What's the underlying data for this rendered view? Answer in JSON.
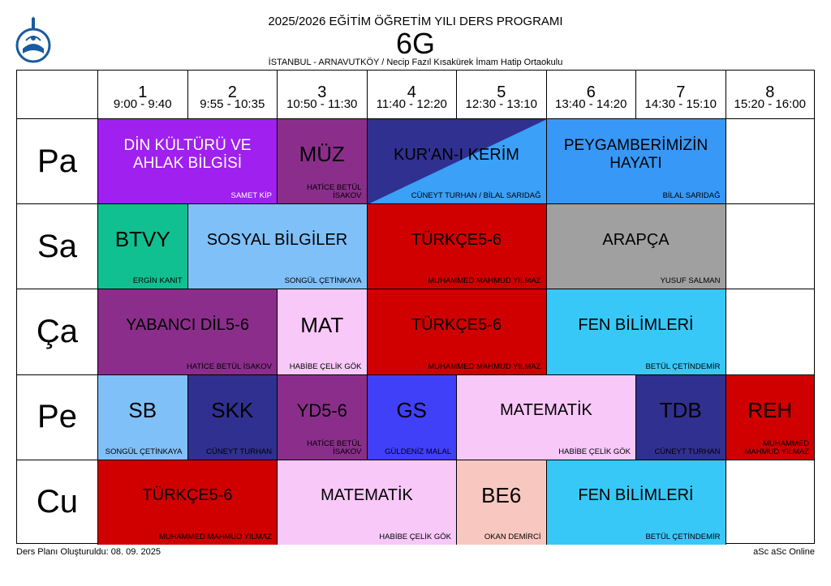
{
  "header": {
    "title": "2025/2026 EĞİTİM ÖĞRETİM YILI DERS PROGRAMI",
    "class_name": "6G",
    "school": "İSTANBUL - ARNAVUTKÖY / Necip Fazıl Kısakürek İmam Hatip Ortaokulu"
  },
  "periods": [
    {
      "num": "1",
      "time": "9:00 - 9:40"
    },
    {
      "num": "2",
      "time": "9:55 - 10:35"
    },
    {
      "num": "3",
      "time": "10:50 - 11:30"
    },
    {
      "num": "4",
      "time": "11:40 - 12:20"
    },
    {
      "num": "5",
      "time": "12:30 - 13:10"
    },
    {
      "num": "6",
      "time": "13:40 - 14:20"
    },
    {
      "num": "7",
      "time": "14:30 - 15:10"
    },
    {
      "num": "8",
      "time": "15:20 - 16:00"
    }
  ],
  "days": [
    "Pa",
    "Sa",
    "Ça",
    "Pe",
    "Cu"
  ],
  "lessons": [
    {
      "day": 0,
      "start": 0,
      "span": 2,
      "name": "DİN KÜLTÜRÜ VE AHLAK BİLGİSİ",
      "teacher": "SAMET KİP",
      "color": "#a020f0",
      "text_color": "#fff"
    },
    {
      "day": 0,
      "start": 2,
      "span": 1,
      "name": "MÜZ",
      "teacher": "HATİCE BETÜL İSAKOV",
      "color": "#8b2e8b",
      "text_color": "#000"
    },
    {
      "day": 0,
      "start": 3,
      "span": 2,
      "name": "KUR'AN-I KERİM",
      "teacher": "CÜNEYT TURHAN / BİLAL SARIDAĞ",
      "color": "#3aa0f8",
      "color2": "#303090",
      "text_color": "#000"
    },
    {
      "day": 0,
      "start": 5,
      "span": 2,
      "name": "PEYGAMBERİMİZİN HAYATI",
      "teacher": "BİLAL SARIDAĞ",
      "color": "#3898f8",
      "text_color": "#000"
    },
    {
      "day": 1,
      "start": 0,
      "span": 1,
      "name": "BTVY",
      "teacher": "ERGİN KANIT",
      "color": "#10c090",
      "text_color": "#000"
    },
    {
      "day": 1,
      "start": 1,
      "span": 2,
      "name": "SOSYAL BİLGİLER",
      "teacher": "SONGÜL ÇETİNKAYA",
      "color": "#80c0f8",
      "text_color": "#000"
    },
    {
      "day": 1,
      "start": 3,
      "span": 2,
      "name": "TÜRKÇE5-6",
      "teacher": "MUHAMMED MAHMUD YILMAZ",
      "color": "#d00000",
      "text_color": "#000"
    },
    {
      "day": 1,
      "start": 5,
      "span": 2,
      "name": "ARAPÇA",
      "teacher": "YUSUF SALMAN",
      "color": "#a0a0a0",
      "text_color": "#000"
    },
    {
      "day": 2,
      "start": 0,
      "span": 2,
      "name": "YABANCI DİL5-6",
      "teacher": "HATİCE BETÜL İSAKOV",
      "color": "#8b2e8b",
      "text_color": "#000"
    },
    {
      "day": 2,
      "start": 2,
      "span": 1,
      "name": "MAT",
      "teacher": "HABİBE ÇELİK GÖK",
      "color": "#f8c8f8",
      "text_color": "#000"
    },
    {
      "day": 2,
      "start": 3,
      "span": 2,
      "name": "TÜRKÇE5-6",
      "teacher": "MUHAMMED MAHMUD YILMAZ",
      "color": "#d00000",
      "text_color": "#000"
    },
    {
      "day": 2,
      "start": 5,
      "span": 2,
      "name": "FEN BİLİMLERİ",
      "teacher": "BETÜL ÇETİNDEMİR",
      "color": "#38c8f8",
      "text_color": "#000"
    },
    {
      "day": 3,
      "start": 0,
      "span": 1,
      "name": "SB",
      "teacher": "SONGÜL ÇETİNKAYA",
      "color": "#80c0f8",
      "text_color": "#000"
    },
    {
      "day": 3,
      "start": 1,
      "span": 1,
      "name": "SKK",
      "teacher": "CÜNEYT TURHAN",
      "color": "#303090",
      "text_color": "#000"
    },
    {
      "day": 3,
      "start": 2,
      "span": 1,
      "name": "YD5-6",
      "teacher": "HATİCE BETÜL İSAKOV",
      "color": "#8b2e8b",
      "text_color": "#000"
    },
    {
      "day": 3,
      "start": 3,
      "span": 1,
      "name": "GS",
      "teacher": "GÜLDENİZ MALAL",
      "color": "#4040f8",
      "text_color": "#000"
    },
    {
      "day": 3,
      "start": 4,
      "span": 2,
      "name": "MATEMATİK",
      "teacher": "HABİBE ÇELİK GÖK",
      "color": "#f8c8f8",
      "text_color": "#000"
    },
    {
      "day": 3,
      "start": 6,
      "span": 1,
      "name": "TDB",
      "teacher": "CÜNEYT TURHAN",
      "color": "#303090",
      "text_color": "#000"
    },
    {
      "day": 3,
      "start": 7,
      "span": 1,
      "name": "REH",
      "teacher": "MUHAMMED MAHMUD YILMAZ",
      "color": "#d00000",
      "text_color": "#000"
    },
    {
      "day": 4,
      "start": 0,
      "span": 2,
      "name": "TÜRKÇE5-6",
      "teacher": "MUHAMMED MAHMUD YILMAZ",
      "color": "#d00000",
      "text_color": "#000"
    },
    {
      "day": 4,
      "start": 2,
      "span": 2,
      "name": "MATEMATİK",
      "teacher": "HABİBE ÇELİK GÖK",
      "color": "#f8c8f8",
      "text_color": "#000"
    },
    {
      "day": 4,
      "start": 4,
      "span": 1,
      "name": "BE6",
      "teacher": "OKAN DEMİRCİ",
      "color": "#f8c8c0",
      "text_color": "#000"
    },
    {
      "day": 4,
      "start": 5,
      "span": 2,
      "name": "FEN BİLİMLERİ",
      "teacher": "BETÜL ÇETİNDEMİR",
      "color": "#38c8f8",
      "text_color": "#000"
    }
  ],
  "footer": {
    "created": "Ders Planı Oluşturuldu: 08. 09. 2025",
    "brand": "aSc aSc Online"
  }
}
